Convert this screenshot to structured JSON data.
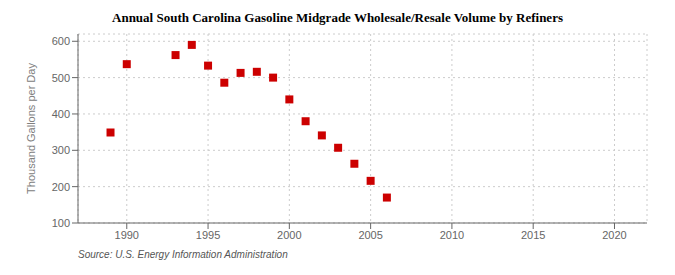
{
  "chart_data": {
    "type": "scatter",
    "title": "Annual South Carolina Gasoline Midgrade Wholesale/Resale Volume by Refiners",
    "ylabel": "Thousand Gallons per Day",
    "source": "Source: U.S. Energy Information Administration",
    "x": [
      1989,
      1990,
      1993,
      1994,
      1995,
      1996,
      1997,
      1998,
      1999,
      2000,
      2001,
      2002,
      2003,
      2004,
      2005,
      2006
    ],
    "values": [
      349,
      537,
      562,
      590,
      533,
      486,
      513,
      516,
      500,
      440,
      380,
      341,
      307,
      263,
      216,
      170
    ],
    "color": "#cc0000",
    "marker": "square",
    "xlim": [
      1987,
      2022
    ],
    "ylim": [
      100,
      620
    ],
    "xticks": [
      1990,
      1995,
      2000,
      2005,
      2010,
      2015,
      2020
    ],
    "yticks": [
      100,
      200,
      300,
      400,
      500,
      600
    ],
    "grid": true
  }
}
